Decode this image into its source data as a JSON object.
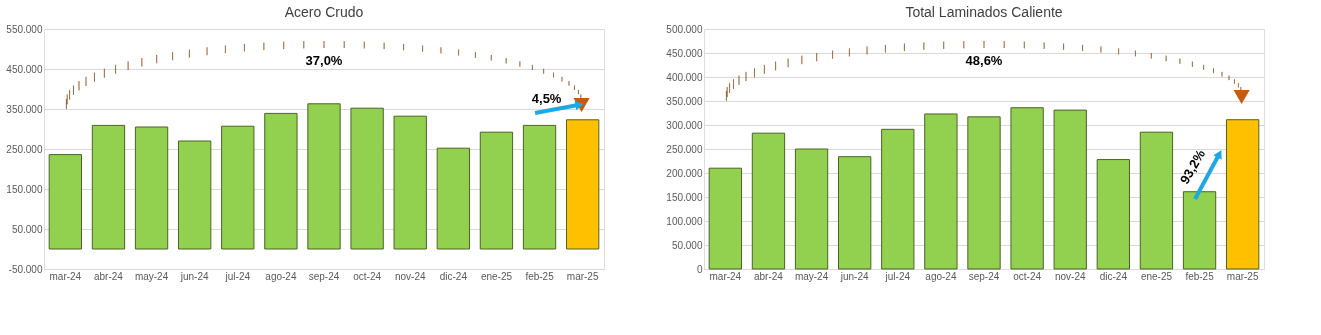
{
  "chart_data": [
    {
      "type": "bar",
      "title": "Acero Crudo",
      "categories": [
        "mar-24",
        "abr-24",
        "may-24",
        "jun-24",
        "jul-24",
        "ago-24",
        "sep-24",
        "oct-24",
        "nov-24",
        "dic-24",
        "ene-25",
        "feb-25",
        "mar-25"
      ],
      "values": [
        236000,
        309000,
        305000,
        270000,
        307000,
        339000,
        363000,
        352000,
        332000,
        252000,
        292000,
        309000,
        323000
      ],
      "colors": [
        "#92d050",
        "#92d050",
        "#92d050",
        "#92d050",
        "#92d050",
        "#92d050",
        "#92d050",
        "#92d050",
        "#92d050",
        "#92d050",
        "#92d050",
        "#92d050",
        "#ffc000"
      ],
      "ylim": [
        -50000,
        550000
      ],
      "yticks": [
        {
          "value": -50000,
          "label": "-50.000"
        },
        {
          "value": 50000,
          "label": "50.000"
        },
        {
          "value": 150000,
          "label": "150.000"
        },
        {
          "value": 250000,
          "label": "250.000"
        },
        {
          "value": 350000,
          "label": "350.000"
        },
        {
          "value": 450000,
          "label": "450.000"
        },
        {
          "value": 550000,
          "label": "550.000"
        }
      ],
      "grid": "y",
      "annotations": [
        "37,0%",
        "4,5%"
      ]
    },
    {
      "type": "bar",
      "title": "Total Laminados Caliente",
      "categories": [
        "mar-24",
        "abr-24",
        "may-24",
        "jun-24",
        "jul-24",
        "ago-24",
        "sep-24",
        "oct-24",
        "nov-24",
        "dic-24",
        "ene-25",
        "feb-25",
        "mar-25"
      ],
      "values": [
        210000,
        283000,
        250000,
        234000,
        291000,
        323000,
        317000,
        336000,
        331000,
        228000,
        285000,
        161000,
        311000
      ],
      "colors": [
        "#92d050",
        "#92d050",
        "#92d050",
        "#92d050",
        "#92d050",
        "#92d050",
        "#92d050",
        "#92d050",
        "#92d050",
        "#92d050",
        "#92d050",
        "#92d050",
        "#ffc000"
      ],
      "ylim": [
        0,
        500000
      ],
      "yticks": [
        0,
        {
          "value": 50000,
          "label": "50.000"
        },
        {
          "value": 100000,
          "label": "100.000"
        },
        {
          "value": 150000,
          "label": "150.000"
        },
        {
          "value": 200000,
          "label": "200.000"
        },
        {
          "value": 250000,
          "label": "250.000"
        },
        {
          "value": 300000,
          "label": "300.000"
        },
        {
          "value": 350000,
          "label": "350.000"
        },
        {
          "value": 400000,
          "label": "400.000"
        },
        {
          "value": 450000,
          "label": "450.000"
        },
        {
          "value": 500000,
          "label": "500.000"
        }
      ],
      "grid": "y",
      "annotations": [
        "48,6%",
        "93,2%"
      ]
    }
  ]
}
